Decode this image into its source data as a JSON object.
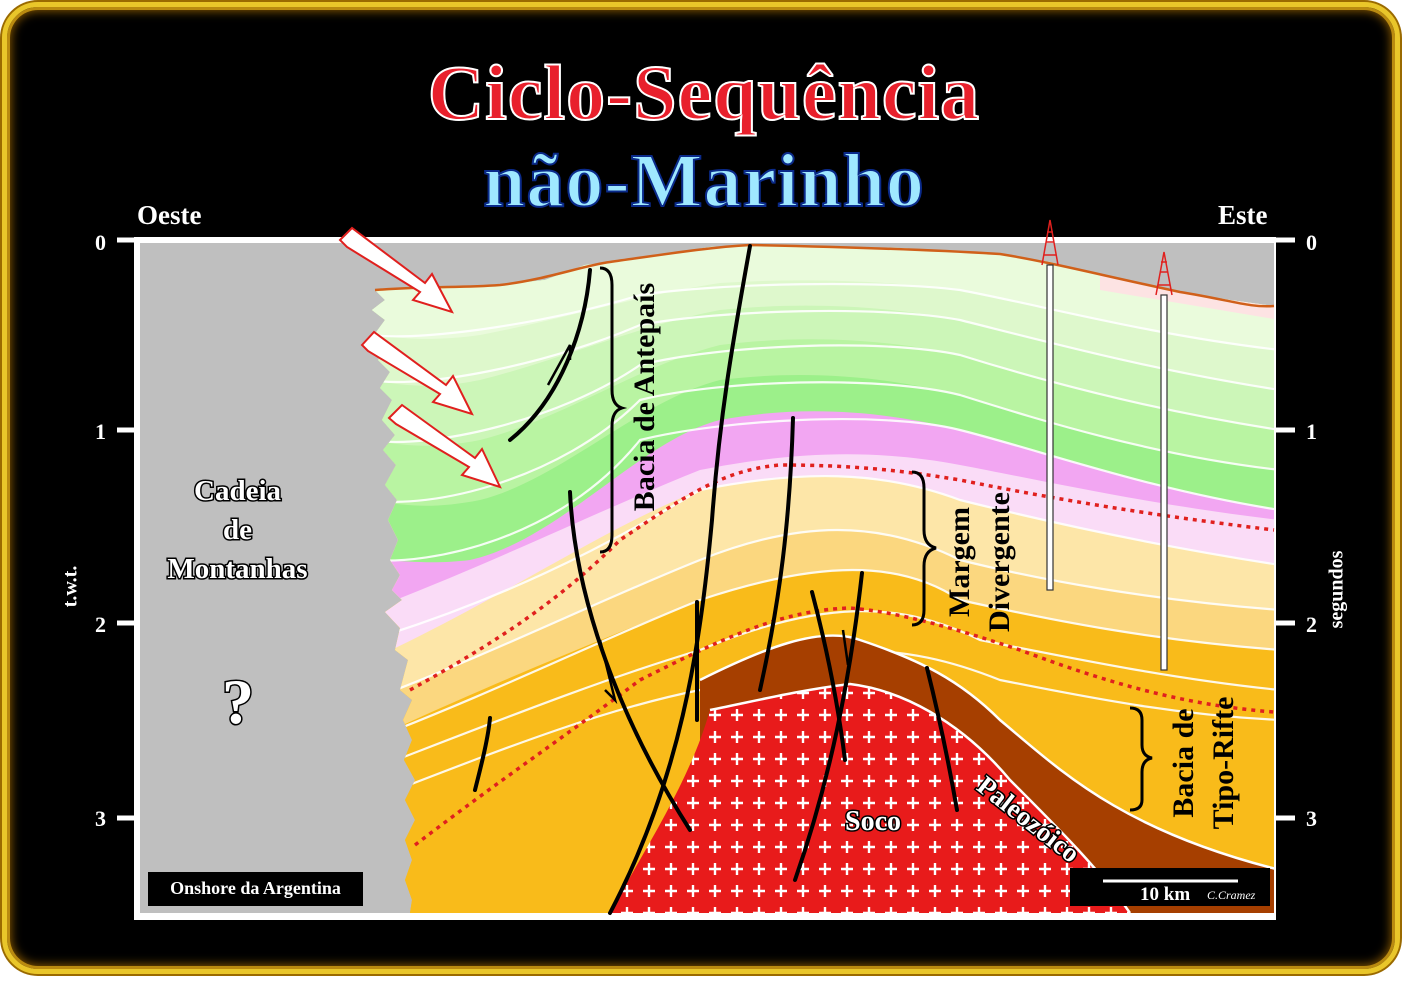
{
  "title": {
    "line1": "Ciclo-Sequência",
    "line2": "não-Marinho"
  },
  "directions": {
    "west": "Oeste",
    "east": "Este"
  },
  "axes": {
    "left_label": "t.w.t.",
    "right_label": "segundos",
    "left_ticks": [
      "0",
      "1",
      "2",
      "3"
    ],
    "right_ticks": [
      "0",
      "1",
      "2",
      "3"
    ]
  },
  "labels": {
    "mountains_line1": "Cadeia",
    "mountains_line2": "de",
    "mountains_line3": "Montanhas",
    "question": "?",
    "foreland": "Bacia de Antepaís",
    "divergent_line1": "Margem",
    "divergent_line2": "Divergente",
    "rift_line1": "Bacia de",
    "rift_line2": "Tipo-Rifte",
    "paleozoic": "Paleozóico",
    "basement": "Soco",
    "location": "Onshore da Argentina",
    "scale": "10 km",
    "credit": "C.Cramez"
  },
  "colors": {
    "frame_gold": "#e9c62a",
    "title_red": "#e8202c",
    "title_blue": "#9fe8ff",
    "mountains_grey": "#c0c0c0",
    "foreland_green": "#9cf08a",
    "divergent_pink": "#f2a6f2",
    "rift_orange": "#f9bb1a",
    "paleozoic_brown": "#a63f00",
    "basement_red": "#e81b1b"
  }
}
